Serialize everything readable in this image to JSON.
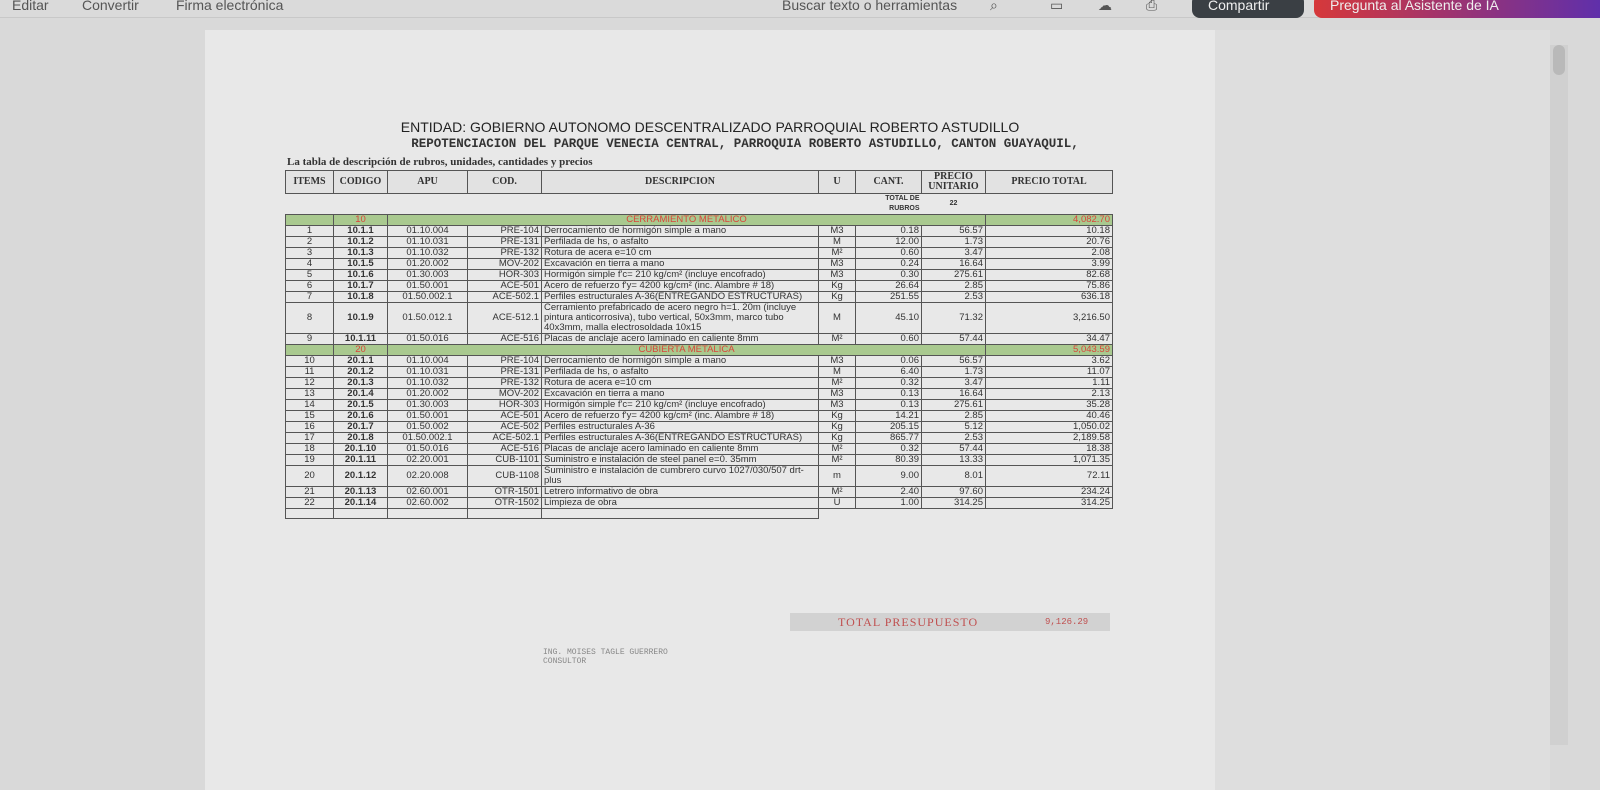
{
  "toolbar": {
    "menu": [
      "Editar",
      "Convertir",
      "Firma electrónica"
    ],
    "search_label": "Buscar texto o herramientas",
    "share_label": "Compartir",
    "assistant_label": "Pregunta al Asistente de IA",
    "colors": {
      "share": "#3a3f44",
      "assistant": "#d6383a"
    }
  },
  "doc": {
    "title": "ENTIDAD: GOBIERNO AUTONOMO DESCENTRALIZADO PARROQUIAL ROBERTO ASTUDILLO",
    "subtitle": "REPOTENCIACION DEL PARQUE VENECIA CENTRAL, PARROQUIA ROBERTO ASTUDILLO, CANTON GUAYAQUIL,",
    "caption": "La tabla de descripción de rubros, unidades, cantidades y precios",
    "headers": [
      "ITEMS",
      "CODIGO",
      "APU",
      "COD.",
      "DESCRIPCION",
      "U",
      "CANT.",
      "PRECIO UNITARIO",
      "PRECIO TOTAL"
    ],
    "total_rubros_label": "TOTAL DE RUBROS",
    "total_rubros": "22",
    "sections": [
      {
        "code": "10",
        "name": "CERRAMIENTO METALICO",
        "total": "4,082.70",
        "rows": [
          [
            "1",
            "10.1.1",
            "01.10.004",
            "PRE-104",
            "Derrocamiento de hormigón simple a mano",
            "M3",
            "0.18",
            "56.57",
            "10.18"
          ],
          [
            "2",
            "10.1.2",
            "01.10.031",
            "PRE-131",
            "Perfilada de hs, o asfalto",
            "M",
            "12.00",
            "1.73",
            "20.76"
          ],
          [
            "3",
            "10.1.3",
            "01.10.032",
            "PRE-132",
            "Rotura de acera e=10 cm",
            "M²",
            "0.60",
            "3.47",
            "2.08"
          ],
          [
            "4",
            "10.1.5",
            "01.20.002",
            "MOV-202",
            "Excavación en tierra a mano",
            "M3",
            "0.24",
            "16.64",
            "3.99"
          ],
          [
            "5",
            "10.1.6",
            "01.30.003",
            "HOR-303",
            "Hormigón simple f'c= 210 kg/cm² (incluye encofrado)",
            "M3",
            "0.30",
            "275.61",
            "82.68"
          ],
          [
            "6",
            "10.1.7",
            "01.50.001",
            "ACE-501",
            "Acero de refuerzo f'y= 4200 kg/cm² (inc. Alambre # 18)",
            "Kg",
            "26.64",
            "2.85",
            "75.86"
          ],
          [
            "7",
            "10.1.8",
            "01.50.002.1",
            "ACE-502.1",
            "Perfiles estructurales A-36(ENTREGANDO ESTRUCTURAS)",
            "Kg",
            "251.55",
            "2.53",
            "636.18"
          ],
          [
            "8",
            "10.1.9",
            "01.50.012.1",
            "ACE-512.1",
            "Cerramiento prefabricado de acero negro h=1. 20m (incluye pintura anticorrosiva), tubo vertical, 50x3mm, marco tubo 40x3mm, malla electrosoldada 10x15",
            "M",
            "45.10",
            "71.32",
            "3,216.50"
          ],
          [
            "9",
            "10.1.11",
            "01.50.016",
            "ACE-516",
            "Placas de anclaje acero laminado en caliente 8mm",
            "M²",
            "0.60",
            "57.44",
            "34.47"
          ]
        ]
      },
      {
        "code": "20",
        "name": "CUBIERTA METALICA",
        "total": "5,043.59",
        "rows": [
          [
            "10",
            "20.1.1",
            "01.10.004",
            "PRE-104",
            "Derrocamiento de hormigón simple a mano",
            "M3",
            "0.06",
            "56.57",
            "3.62"
          ],
          [
            "11",
            "20.1.2",
            "01.10.031",
            "PRE-131",
            "Perfilada de hs, o asfalto",
            "M",
            "6.40",
            "1.73",
            "11.07"
          ],
          [
            "12",
            "20.1.3",
            "01.10.032",
            "PRE-132",
            "Rotura de acera e=10 cm",
            "M²",
            "0.32",
            "3.47",
            "1.11"
          ],
          [
            "13",
            "20.1.4",
            "01.20.002",
            "MOV-202",
            "Excavación en tierra a mano",
            "M3",
            "0.13",
            "16.64",
            "2.13"
          ],
          [
            "14",
            "20.1.5",
            "01.30.003",
            "HOR-303",
            "Hormigón simple f'c= 210 kg/cm² (incluye encofrado)",
            "M3",
            "0.13",
            "275.61",
            "35.28"
          ],
          [
            "15",
            "20.1.6",
            "01.50.001",
            "ACE-501",
            "Acero de refuerzo f'y= 4200 kg/cm² (inc. Alambre # 18)",
            "Kg",
            "14.21",
            "2.85",
            "40.46"
          ],
          [
            "16",
            "20.1.7",
            "01.50.002",
            "ACE-502",
            "Perfiles estructurales A-36",
            "Kg",
            "205.15",
            "5.12",
            "1,050.02"
          ],
          [
            "17",
            "20.1.8",
            "01.50.002.1",
            "ACE-502.1",
            "Perfiles estructurales A-36(ENTREGANDO ESTRUCTURAS)",
            "Kg",
            "865.77",
            "2.53",
            "2,189.58"
          ],
          [
            "18",
            "20.1.10",
            "01.50.016",
            "ACE-516",
            "Placas de anclaje acero laminado en caliente 8mm",
            "M²",
            "0.32",
            "57.44",
            "18.38"
          ],
          [
            "19",
            "20.1.11",
            "02.20.001",
            "CUB-1101",
            "Suministro e instalación de steel panel e=0. 35mm",
            "M²",
            "80.39",
            "13.33",
            "1,071.35"
          ],
          [
            "20",
            "20.1.12",
            "02.20.008",
            "CUB-1108",
            "Suministro e instalación de cumbrero curvo 1027/030/507 drt-plus",
            "m",
            "9.00",
            "8.01",
            "72.11"
          ],
          [
            "21",
            "20.1.13",
            "02.60.001",
            "OTR-1501",
            "Letrero informativo de obra",
            "M²",
            "2.40",
            "97.60",
            "234.24"
          ],
          [
            "22",
            "20.1.14",
            "02.60.002",
            "OTR-1502",
            "Limpieza de obra",
            "U",
            "1.00",
            "314.25",
            "314.25"
          ]
        ]
      }
    ],
    "total_label": "TOTAL PRESUPUESTO",
    "total_value": "9,126.29",
    "signature": {
      "name": "ING. MOISES TAGLE GUERRERO",
      "role": "CONSULTOR"
    }
  }
}
